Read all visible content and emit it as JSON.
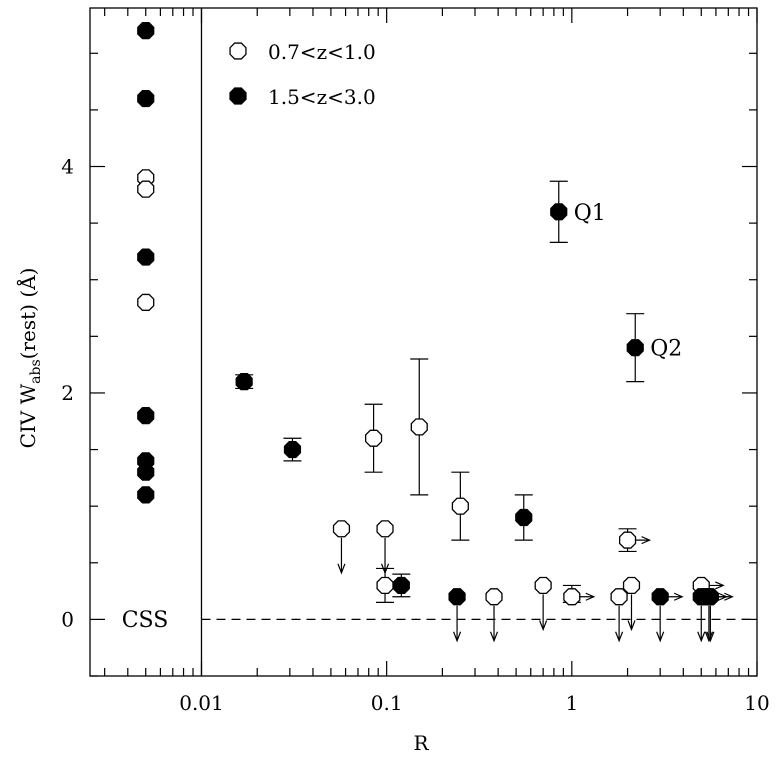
{
  "chart_data": {
    "type": "scatter",
    "xlabel": "R",
    "ylabel": "CIV W",
    "ylabel_sub": "abs",
    "ylabel_rest": "(rest)  (Å)",
    "x_scale": "log",
    "xlim": [
      0.0025,
      10
    ],
    "ylim": [
      -0.5,
      5.4
    ],
    "x_ticks": [
      {
        "value": 0.01,
        "label": "0.01"
      },
      {
        "value": 0.1,
        "label": "0.1"
      },
      {
        "value": 1,
        "label": "1"
      },
      {
        "value": 10,
        "label": "10"
      }
    ],
    "y_ticks": [
      {
        "value": 0,
        "label": "0"
      },
      {
        "value": 2,
        "label": "2"
      },
      {
        "value": 4,
        "label": "4"
      }
    ],
    "divider_x": 0.01,
    "reference_line_y": 0,
    "region_label": "CSS",
    "legend": [
      {
        "name": "0.7<z<1.0",
        "marker": "open"
      },
      {
        "name": "1.5<z<3.0",
        "marker": "filled"
      }
    ],
    "css_x": 0.005,
    "css_points": [
      {
        "y": 5.2,
        "series": "1.5<z<3.0"
      },
      {
        "y": 4.6,
        "series": "1.5<z<3.0"
      },
      {
        "y": 3.9,
        "series": "0.7<z<1.0"
      },
      {
        "y": 3.8,
        "series": "0.7<z<1.0"
      },
      {
        "y": 3.2,
        "series": "1.5<z<3.0"
      },
      {
        "y": 2.8,
        "series": "0.7<z<1.0"
      },
      {
        "y": 1.8,
        "series": "1.5<z<3.0"
      },
      {
        "y": 1.4,
        "series": "1.5<z<3.0"
      },
      {
        "y": 1.3,
        "series": "1.5<z<3.0"
      },
      {
        "y": 1.1,
        "series": "1.5<z<3.0"
      }
    ],
    "series": [
      {
        "name": "0.7<z<1.0",
        "points": [
          {
            "x": 0.057,
            "y": 0.8,
            "upper_limit": true
          },
          {
            "x": 0.085,
            "y": 1.6,
            "yerr": [
              1.3,
              1.9
            ]
          },
          {
            "x": 0.098,
            "y": 0.8,
            "upper_limit": true
          },
          {
            "x": 0.098,
            "y": 0.3,
            "yerr": [
              0.15,
              0.45
            ]
          },
          {
            "x": 0.15,
            "y": 1.7,
            "yerr": [
              1.1,
              2.3
            ]
          },
          {
            "x": 0.25,
            "y": 1.0,
            "yerr": [
              0.7,
              1.3
            ]
          },
          {
            "x": 0.38,
            "y": 0.2,
            "upper_limit": true
          },
          {
            "x": 0.7,
            "y": 0.3,
            "upper_limit": true
          },
          {
            "x": 1.0,
            "y": 0.2,
            "yerr": [
              0.15,
              0.3
            ],
            "lower_limit_x": true
          },
          {
            "x": 1.8,
            "y": 0.2,
            "upper_limit": true
          },
          {
            "x": 2.0,
            "y": 0.7,
            "yerr": [
              0.6,
              0.8
            ],
            "lower_limit_x": true
          },
          {
            "x": 2.1,
            "y": 0.3,
            "upper_limit": true
          },
          {
            "x": 5.0,
            "y": 0.3,
            "lower_limit_x": true
          },
          {
            "x": 5.5,
            "y": 0.2,
            "upper_limit": true
          }
        ]
      },
      {
        "name": "1.5<z<3.0",
        "points": [
          {
            "x": 0.017,
            "y": 2.1,
            "yerr": [
              2.04,
              2.16
            ]
          },
          {
            "x": 0.031,
            "y": 1.5,
            "yerr": [
              1.4,
              1.6
            ]
          },
          {
            "x": 0.12,
            "y": 0.3,
            "yerr": [
              0.2,
              0.4
            ]
          },
          {
            "x": 0.24,
            "y": 0.2,
            "upper_limit": true
          },
          {
            "x": 0.55,
            "y": 0.9,
            "yerr": [
              0.7,
              1.1
            ]
          },
          {
            "x": 0.85,
            "y": 3.6,
            "yerr": [
              3.33,
              3.87
            ],
            "label": "Q1"
          },
          {
            "x": 2.2,
            "y": 2.4,
            "yerr": [
              2.1,
              2.7
            ],
            "label": "Q2"
          },
          {
            "x": 3.0,
            "y": 0.2,
            "upper_limit": true,
            "lower_limit_x": true
          },
          {
            "x": 5.0,
            "y": 0.2,
            "upper_limit": true
          },
          {
            "x": 5.2,
            "y": 0.2,
            "lower_limit_x": true
          },
          {
            "x": 5.6,
            "y": 0.2,
            "upper_limit": true,
            "lower_limit_x": true
          }
        ]
      }
    ]
  }
}
